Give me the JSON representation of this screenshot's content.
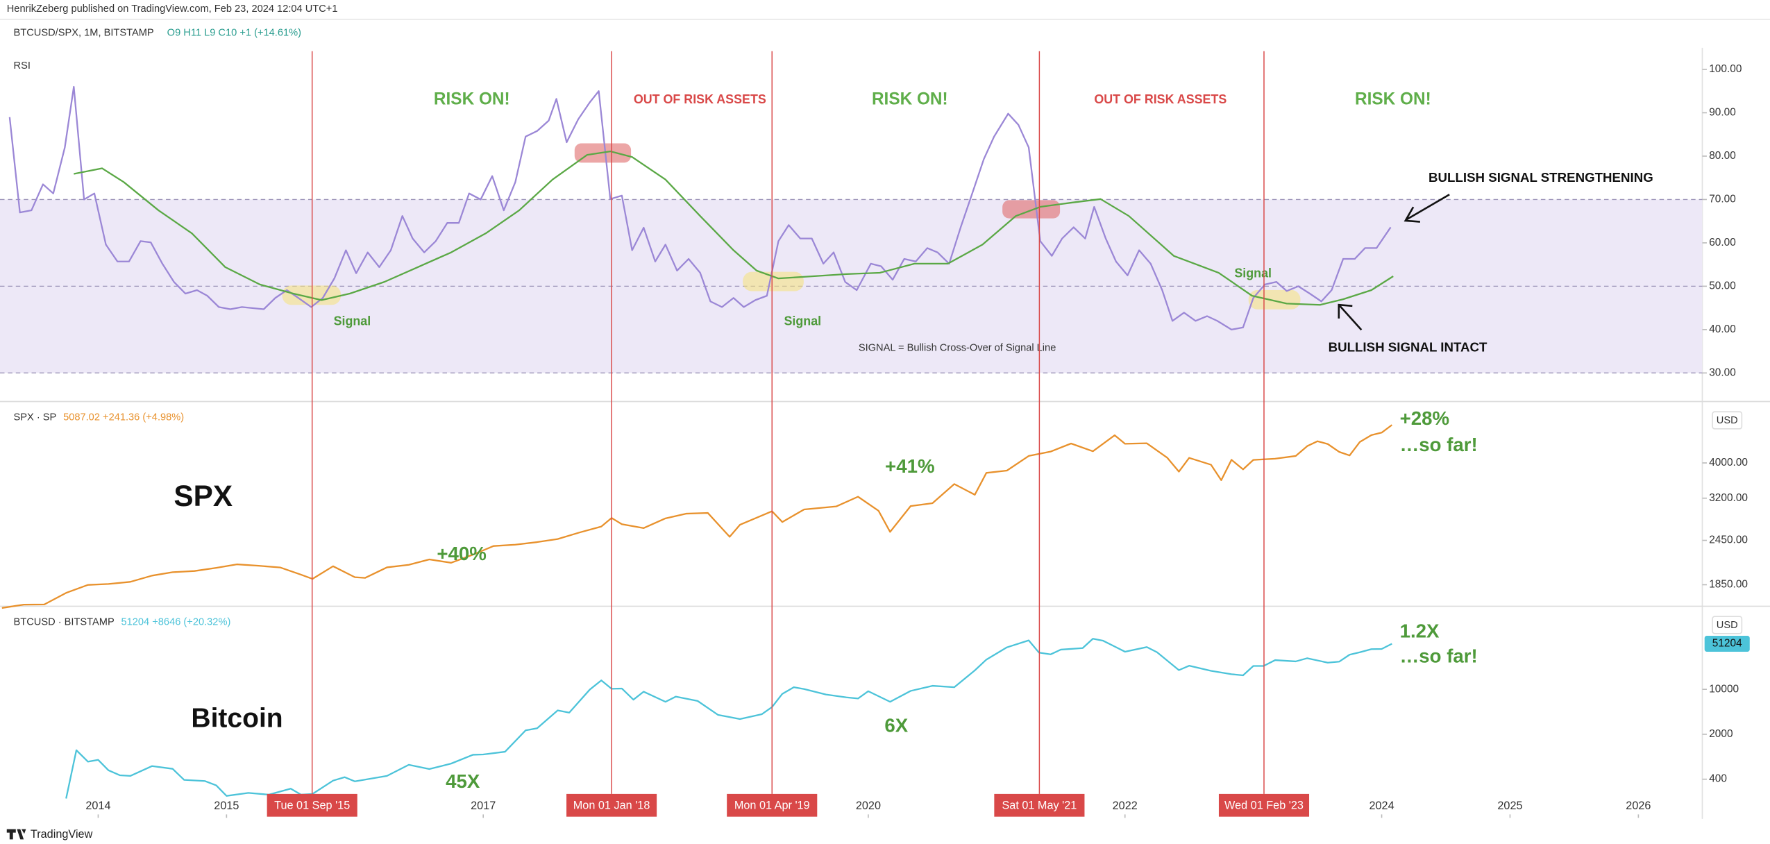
{
  "header": {
    "byline": "HenrikZeberg published on TradingView.com, Feb 23, 2024 12:04 UTC+1",
    "symbol": "BTCUSD/SPX, 1M, BITSTAMP",
    "ohlc": "O9 H11 L9 C10 +1 (+14.61%)"
  },
  "footer": {
    "brand": "TradingView"
  },
  "chart_data": [
    {
      "type": "line",
      "title": "RSI",
      "xlim": [
        2013.235,
        2026.498
      ],
      "ylim": [
        24.2,
        104.2
      ],
      "yticks": [
        {
          "value": 100,
          "label": "100.00"
        },
        {
          "value": 90,
          "label": "90.00"
        },
        {
          "value": 80,
          "label": "80.00"
        },
        {
          "value": 70,
          "label": "70.00"
        },
        {
          "value": 60,
          "label": "60.00"
        },
        {
          "value": 50,
          "label": "50.00"
        },
        {
          "value": 40,
          "label": "40.00"
        },
        {
          "value": 30,
          "label": "30.00"
        }
      ],
      "bands": [
        70,
        50,
        30
      ],
      "band_color": "#ede8f7",
      "series": [
        {
          "color": "#9b87d6",
          "x": [
            2013.31,
            2013.39,
            2013.48,
            2013.57,
            2013.65,
            2013.74,
            2013.81,
            2013.89,
            2013.97,
            2014.06,
            2014.15,
            2014.24,
            2014.33,
            2014.41,
            2014.5,
            2014.59,
            2014.68,
            2014.77,
            2014.85,
            2014.94,
            2015.03,
            2015.12,
            2015.29,
            2015.38,
            2015.47,
            2015.56,
            2015.66,
            2015.75,
            2015.84,
            2015.93,
            2016.01,
            2016.1,
            2016.19,
            2016.28,
            2016.37,
            2016.45,
            2016.54,
            2016.63,
            2016.72,
            2016.81,
            2016.89,
            2016.98,
            2017.07,
            2017.16,
            2017.25,
            2017.33,
            2017.42,
            2017.51,
            2017.57,
            2017.65,
            2017.74,
            2017.83,
            2017.9,
            2017.99,
            2018.08,
            2018.16,
            2018.25,
            2018.34,
            2018.42,
            2018.51,
            2018.6,
            2018.69,
            2018.77,
            2018.86,
            2018.95,
            2019.03,
            2019.12,
            2019.21,
            2019.3,
            2019.38,
            2019.47,
            2019.56,
            2019.65,
            2019.73,
            2019.82,
            2019.91,
            2020.02,
            2020.1,
            2020.19,
            2020.28,
            2020.37,
            2020.46,
            2020.54,
            2020.63,
            2020.72,
            2020.81,
            2020.9,
            2020.98,
            2021.09,
            2021.17,
            2021.25,
            2021.34,
            2021.43,
            2021.51,
            2021.6,
            2021.69,
            2021.76,
            2021.85,
            2021.93,
            2022.02,
            2022.11,
            2022.2,
            2022.29,
            2022.37,
            2022.46,
            2022.55,
            2022.64,
            2022.72,
            2022.83,
            2022.92,
            2023,
            2023.09,
            2023.18,
            2023.26,
            2023.35,
            2023.44,
            2023.53,
            2023.61,
            2023.7,
            2023.79,
            2023.87,
            2023.96,
            2024.07
          ],
          "values": [
            89,
            67,
            67.5,
            73.5,
            71.4,
            82,
            96,
            70,
            71.4,
            59.6,
            55.7,
            55.7,
            60.4,
            60.1,
            55.2,
            51,
            48.3,
            49.1,
            47.8,
            45.2,
            44.7,
            45.2,
            44.7,
            47.3,
            49.1,
            47.3,
            45.2,
            47.3,
            51.8,
            58.3,
            53,
            57.8,
            54.4,
            58.3,
            66.2,
            61,
            57.8,
            60.4,
            64.6,
            64.6,
            71.4,
            70,
            75.4,
            67.5,
            74,
            84.5,
            85.8,
            88.2,
            93.2,
            83.2,
            88.5,
            92.4,
            95,
            70.1,
            70.9,
            58.3,
            63.5,
            55.7,
            59.6,
            53.6,
            56.3,
            53.1,
            46.5,
            45.2,
            47.3,
            45.2,
            46.8,
            47.8,
            60.4,
            64.1,
            61,
            61,
            55.2,
            57.8,
            51,
            49.1,
            55.2,
            54.6,
            51.5,
            56.3,
            55.7,
            58.8,
            57.8,
            55.2,
            63.6,
            71.4,
            79.3,
            84.5,
            89.8,
            87.2,
            82,
            60.4,
            57,
            61,
            63.6,
            61,
            68.3,
            61,
            55.7,
            52.5,
            58.3,
            55.2,
            49.1,
            42,
            43.9,
            42,
            43.1,
            42,
            40,
            40.5,
            47.3,
            50.4,
            51,
            48.9,
            50,
            48.3,
            46.5,
            49.1,
            56.3,
            56.3,
            58.8,
            58.8,
            63.6
          ]
        },
        {
          "color": "#5aa845",
          "x": [
            2013.81,
            2014.03,
            2014.2,
            2014.47,
            2014.73,
            2014.99,
            2015.26,
            2015.52,
            2015.74,
            2015.96,
            2016.23,
            2016.49,
            2016.75,
            2017.02,
            2017.28,
            2017.54,
            2017.81,
            2017.99,
            2018.16,
            2018.42,
            2018.69,
            2018.95,
            2019.13,
            2019.3,
            2019.57,
            2019.83,
            2020.09,
            2020.36,
            2020.62,
            2020.89,
            2021.15,
            2021.34,
            2021.59,
            2021.81,
            2022.03,
            2022.38,
            2022.73,
            2022.99,
            2023.26,
            2023.52,
            2023.7,
            2023.92,
            2024.09
          ],
          "values": [
            75.9,
            77.2,
            74,
            67.5,
            62.2,
            54.4,
            50.4,
            48.3,
            46.8,
            48.3,
            51,
            54.4,
            57.8,
            62.2,
            67.5,
            74.6,
            80.3,
            81.1,
            79.8,
            74.6,
            66.2,
            58.3,
            53.6,
            51.8,
            52.3,
            52.8,
            53.1,
            55.2,
            55.2,
            59.6,
            66.2,
            68.3,
            69.3,
            70.1,
            66.2,
            57,
            53.1,
            47.8,
            46,
            45.7,
            47,
            49.1,
            52.3
          ]
        }
      ],
      "annotations": [
        {
          "text": "RISK ON!",
          "color": "#5fae4a"
        },
        {
          "text": "OUT OF RISK ASSETS",
          "color": "#d94848"
        },
        {
          "text": "RISK ON!",
          "color": "#5fae4a"
        },
        {
          "text": "OUT OF RISK ASSETS",
          "color": "#d94848"
        },
        {
          "text": "RISK ON!",
          "color": "#5fae4a"
        },
        {
          "text": "BULLISH SIGNAL STRENGTHENING",
          "color": "#111111"
        },
        {
          "text": "BULLISH SIGNAL INTACT",
          "color": "#111111"
        },
        {
          "text": "Signal",
          "color": "#4e9a3a"
        },
        {
          "text": "Signal",
          "color": "#4e9a3a"
        },
        {
          "text": "Signal",
          "color": "#4e9a3a"
        },
        {
          "text": "SIGNAL = Bullish Cross-Over of Signal Line",
          "color": "#333333"
        }
      ]
    },
    {
      "type": "line",
      "log": true,
      "xlim": [
        2013.235,
        2026.498
      ],
      "ylim": [
        1626,
        5816
      ],
      "yticks": [
        {
          "value": 4000,
          "label": "4000.00"
        },
        {
          "value": 3200,
          "label": "3200.00"
        },
        {
          "value": 2450,
          "label": "2450.00"
        },
        {
          "value": 1850,
          "label": "1850.00"
        }
      ],
      "axis_unit": "USD",
      "legend_values": "5087.02 +241.36 (+4.98%)",
      "series": [
        {
          "name": "SPX · SP",
          "color": "#e8912c",
          "x": [
            2013.25,
            2013.42,
            2013.58,
            2013.75,
            2013.92,
            2014.08,
            2014.25,
            2014.42,
            2014.58,
            2014.75,
            2014.92,
            2015.08,
            2015.25,
            2015.42,
            2015.58,
            2015.67,
            2015.83,
            2016.0,
            2016.08,
            2016.25,
            2016.42,
            2016.58,
            2016.75,
            2016.92,
            2017.08,
            2017.25,
            2017.42,
            2017.58,
            2017.75,
            2017.92,
            2018.0,
            2018.08,
            2018.25,
            2018.42,
            2018.58,
            2018.75,
            2018.92,
            2019.0,
            2019.25,
            2019.33,
            2019.5,
            2019.75,
            2019.92,
            2020.08,
            2020.17,
            2020.33,
            2020.5,
            2020.67,
            2020.83,
            2020.92,
            2021.08,
            2021.25,
            2021.42,
            2021.58,
            2021.75,
            2021.92,
            2022.0,
            2022.17,
            2022.33,
            2022.42,
            2022.5,
            2022.67,
            2022.75,
            2022.83,
            2022.92,
            2023.0,
            2023.17,
            2023.33,
            2023.42,
            2023.5,
            2023.58,
            2023.67,
            2023.75,
            2023.83,
            2023.92,
            2024.0,
            2024.08
          ],
          "values": [
            1597,
            1631,
            1633,
            1757,
            1848,
            1859,
            1884,
            1960,
            2003,
            2018,
            2059,
            2105,
            2086,
            2063,
            1972,
            1920,
            2080,
            1940,
            1932,
            2065,
            2099,
            2171,
            2126,
            2238,
            2364,
            2384,
            2423,
            2471,
            2575,
            2674,
            2823,
            2714,
            2648,
            2816,
            2901,
            2914,
            2506,
            2704,
            2946,
            2752,
            2980,
            3037,
            3230,
            2954,
            2585,
            3044,
            3100,
            3500,
            3270,
            3756,
            3811,
            4181,
            4297,
            4523,
            4307,
            4766,
            4516,
            4530,
            4132,
            3785,
            4130,
            3955,
            3586,
            4080,
            3840,
            4077,
            4109,
            4180,
            4450,
            4589,
            4508,
            4288,
            4194,
            4568,
            4770,
            4846,
            5087
          ]
        }
      ],
      "annotations": [
        {
          "text": "SPX",
          "color": "#111111"
        },
        {
          "text": "+40%",
          "color": "#4e9a3a"
        },
        {
          "text": "+41%",
          "color": "#4e9a3a"
        },
        {
          "text": "+28%",
          "color": "#4e9a3a"
        },
        {
          "text": "…so far!",
          "color": "#4e9a3a"
        }
      ]
    },
    {
      "type": "line",
      "log": true,
      "xlim": [
        2013.235,
        2026.498
      ],
      "ylim": [
        118,
        180700
      ],
      "yticks": [
        10000,
        2000,
        400
      ],
      "xticks": [
        2014,
        2015,
        2017,
        2020,
        2022,
        2024,
        2025,
        2026
      ],
      "axis_unit": "USD",
      "legend_values": "51204 +8646 (+20.32%)",
      "vlines": [
        {
          "x": 2015.667,
          "label": "Tue 01 Sep '15"
        },
        {
          "x": 2018.0,
          "label": "Mon 01 Jan '18"
        },
        {
          "x": 2019.25,
          "label": "Mon 01 Apr '19"
        },
        {
          "x": 2021.333,
          "label": "Sat 01 May '21"
        },
        {
          "x": 2023.083,
          "label": "Wed 01 Feb '23"
        }
      ],
      "vline_color": "#d94848",
      "series": [
        {
          "name": "BTCUSD · BITSTAMP",
          "color": "#4cc3d9",
          "x": [
            2013.75,
            2013.83,
            2013.92,
            2014.0,
            2014.08,
            2014.17,
            2014.25,
            2014.42,
            2014.58,
            2014.67,
            2014.83,
            2014.92,
            2015.0,
            2015.17,
            2015.33,
            2015.5,
            2015.58,
            2015.67,
            2015.83,
            2015.92,
            2016.0,
            2016.25,
            2016.42,
            2016.58,
            2016.75,
            2016.92,
            2017.0,
            2017.17,
            2017.33,
            2017.42,
            2017.58,
            2017.67,
            2017.83,
            2017.92,
            2018.0,
            2018.08,
            2018.17,
            2018.25,
            2018.42,
            2018.5,
            2018.67,
            2018.83,
            2018.92,
            2019.0,
            2019.17,
            2019.25,
            2019.33,
            2019.42,
            2019.5,
            2019.67,
            2019.83,
            2019.92,
            2020.0,
            2020.17,
            2020.33,
            2020.5,
            2020.67,
            2020.83,
            2020.92,
            2021.08,
            2021.25,
            2021.33,
            2021.42,
            2021.5,
            2021.67,
            2021.75,
            2021.83,
            2021.92,
            2022.0,
            2022.17,
            2022.25,
            2022.42,
            2022.5,
            2022.67,
            2022.83,
            2022.92,
            2023.0,
            2023.08,
            2023.17,
            2023.33,
            2023.42,
            2023.58,
            2023.67,
            2023.75,
            2023.83,
            2023.92,
            2024.0,
            2024.08
          ],
          "values": [
            200,
            1130,
            750,
            800,
            550,
            460,
            450,
            640,
            580,
            390,
            375,
            320,
            220,
            245,
            230,
            285,
            230,
            236,
            380,
            430,
            370,
            450,
            670,
            575,
            700,
            960,
            970,
            1070,
            2300,
            2480,
            4700,
            4340,
            9900,
            13800,
            10200,
            10300,
            6900,
            9200,
            6400,
            7700,
            6600,
            4000,
            3700,
            3450,
            4100,
            5300,
            8500,
            10800,
            10100,
            8300,
            7500,
            7200,
            9350,
            6400,
            9450,
            11350,
            10780,
            19700,
            29000,
            45000,
            57800,
            37300,
            35000,
            41500,
            43800,
            61300,
            57000,
            46300,
            38500,
            45500,
            37700,
            19900,
            23300,
            19400,
            17200,
            16500,
            23100,
            23100,
            28500,
            27200,
            30500,
            26000,
            27000,
            34600,
            37700,
            42200,
            42500,
            51204
          ]
        }
      ],
      "annotations": [
        {
          "text": "Bitcoin",
          "color": "#111111"
        },
        {
          "text": "45X",
          "color": "#4e9a3a"
        },
        {
          "text": "6X",
          "color": "#4e9a3a"
        },
        {
          "text": "1.2X",
          "color": "#4e9a3a"
        },
        {
          "text": "…so far!",
          "color": "#4e9a3a"
        }
      ]
    }
  ]
}
